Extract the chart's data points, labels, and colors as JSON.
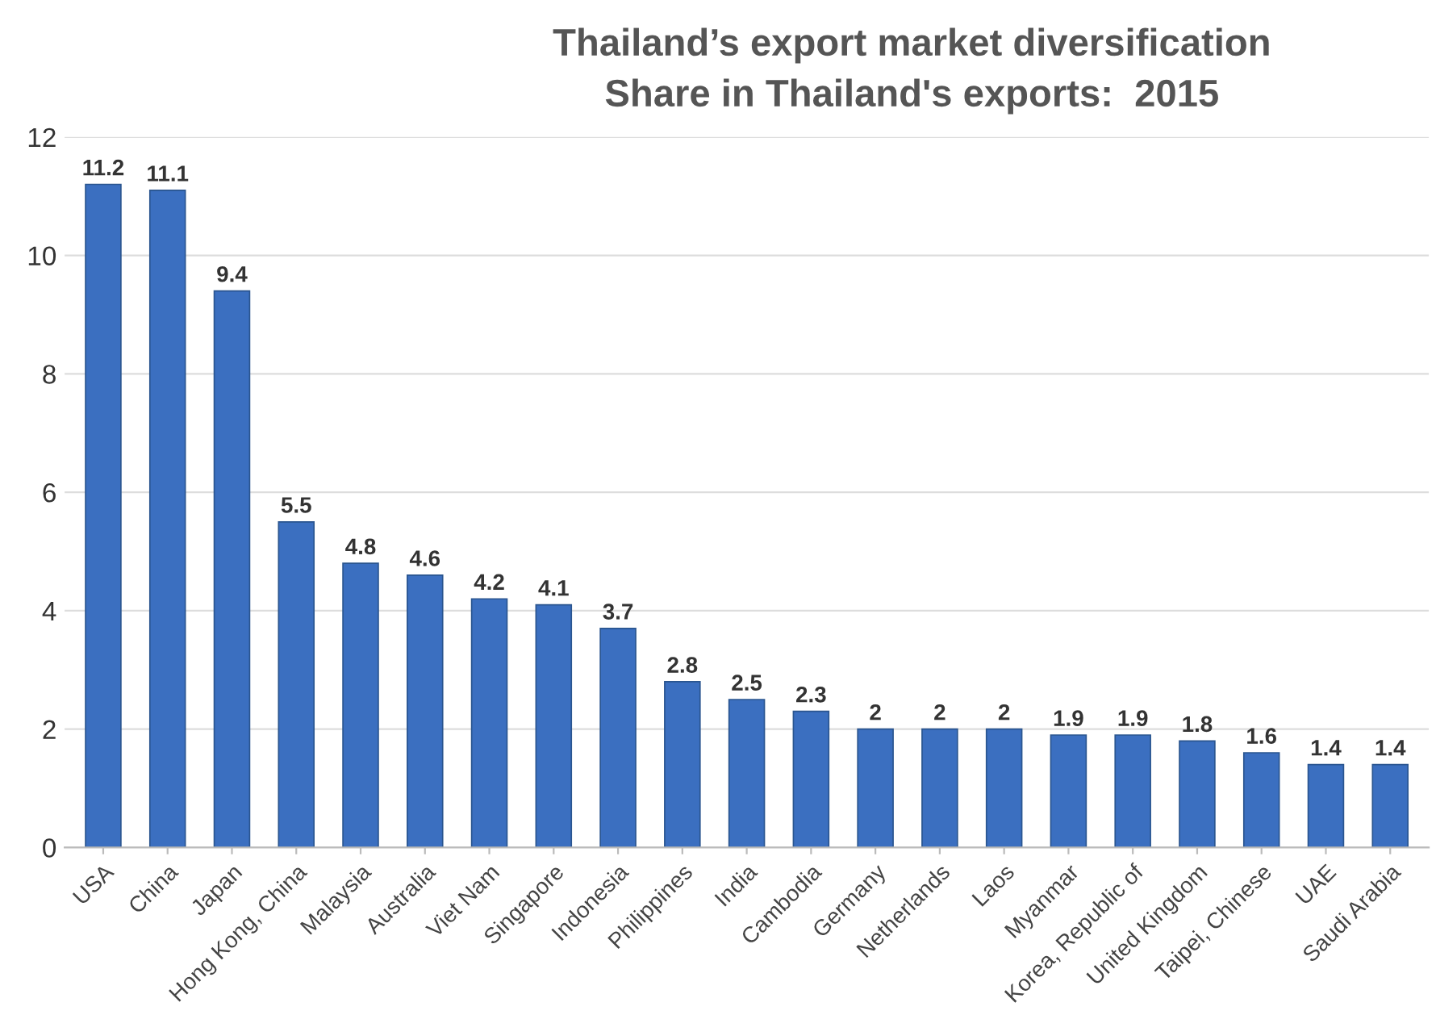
{
  "chart_data": {
    "type": "bar",
    "title": "Thailand’s export market diversification",
    "subtitle": "Share in Thailand's exports:  2015",
    "categories": [
      "USA",
      "China",
      "Japan",
      "Hong Kong, China",
      "Malaysia",
      "Australia",
      "Viet Nam",
      "Singapore",
      "Indonesia",
      "Philippines",
      "India",
      "Cambodia",
      "Germany",
      "Netherlands",
      "Laos",
      "Myanmar",
      "Korea, Republic of",
      "United Kingdom",
      "Taipei, Chinese",
      "UAE",
      "Saudi Arabia"
    ],
    "values": [
      11.2,
      11.1,
      9.4,
      5.5,
      4.8,
      4.6,
      4.2,
      4.1,
      3.7,
      2.8,
      2.5,
      2.3,
      2,
      2,
      2,
      1.9,
      1.9,
      1.8,
      1.6,
      1.4,
      1.4
    ],
    "color": "#3b6fc0",
    "ylim": [
      0,
      12
    ],
    "yticks": [
      0,
      2,
      4,
      6,
      8,
      10,
      12
    ],
    "grid": "y",
    "data_labels": true,
    "legend": false
  }
}
